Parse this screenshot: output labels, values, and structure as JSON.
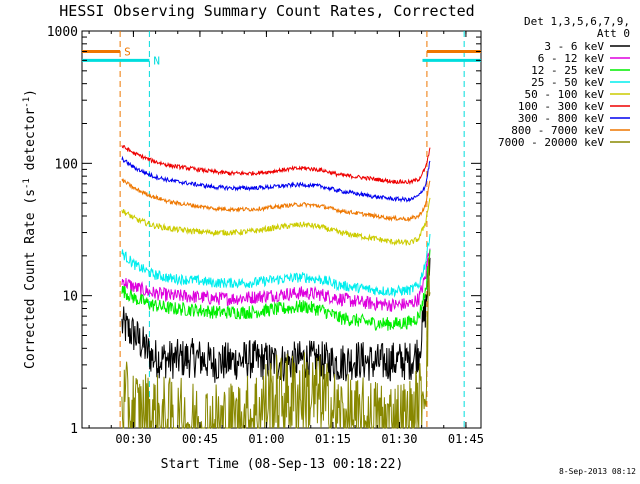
{
  "chart_data": {
    "type": "line",
    "title": "HESSI Observing Summary Count Rates, Corrected",
    "xlabel": "Start Time (08-Sep-13 00:18:22)",
    "ylabel_main": "Corrected Count Rate (s",
    "ylabel_sup1": "-1",
    "ylabel_mid": " detector",
    "ylabel_sup2": "-1",
    "ylabel_end": ")",
    "x_start": "00:18:22",
    "xlim_minutes_after_start": [
      0,
      90
    ],
    "x_ticks": [
      {
        "label": "00:30",
        "minutes": 11.6
      },
      {
        "label": "00:45",
        "minutes": 26.6
      },
      {
        "label": "01:00",
        "minutes": 41.6
      },
      {
        "label": "01:15",
        "minutes": 56.6
      },
      {
        "label": "01:30",
        "minutes": 71.6
      },
      {
        "label": "01:45",
        "minutes": 86.6
      }
    ],
    "y_scale": "log",
    "ylim": [
      1,
      1000
    ],
    "y_ticks": [
      {
        "label": "1",
        "value": 1
      },
      {
        "label": "10",
        "value": 10
      },
      {
        "label": "100",
        "value": 100
      },
      {
        "label": "1000",
        "value": 1000
      }
    ],
    "legend_header": [
      "Det 1,3,5,6,7,9,",
      "Att 0"
    ],
    "legend_placement": "right",
    "series": [
      {
        "name": "3 - 6 keV",
        "color": "#000000",
        "x": [
          9,
          12,
          16,
          20,
          26,
          30,
          34,
          38,
          42,
          46,
          50,
          54,
          58,
          62,
          66,
          70,
          74,
          76,
          77.5,
          78.5
        ],
        "y": [
          6,
          5,
          3.4,
          3.3,
          3.4,
          3.1,
          3.2,
          3.3,
          3.2,
          3.1,
          3.3,
          3.2,
          3.1,
          3.3,
          3.1,
          3.2,
          3.2,
          3.8,
          8,
          18
        ]
      },
      {
        "name": "6 - 12 keV",
        "color": "#dd00dd",
        "x": [
          9,
          12,
          16,
          20,
          26,
          30,
          34,
          38,
          42,
          46,
          50,
          54,
          58,
          62,
          66,
          70,
          74,
          76,
          77.5,
          78.5
        ],
        "y": [
          13,
          11.5,
          10.5,
          10,
          9.8,
          9.5,
          9.5,
          9.7,
          10,
          10.3,
          10.5,
          10.2,
          9.5,
          9.0,
          8.7,
          8.5,
          8.6,
          9.5,
          14,
          25
        ]
      },
      {
        "name": "12 - 25 keV",
        "color": "#00ee00",
        "x": [
          9,
          12,
          16,
          20,
          26,
          30,
          34,
          38,
          42,
          46,
          50,
          54,
          58,
          62,
          66,
          70,
          74,
          76,
          77.5,
          78.5
        ],
        "y": [
          11,
          9.5,
          8.5,
          8,
          7.8,
          7.5,
          7.5,
          7.5,
          7.8,
          8.0,
          8.3,
          7.8,
          6.8,
          6.5,
          6.2,
          6.1,
          6.3,
          7,
          11,
          22
        ]
      },
      {
        "name": "25 - 50 keV",
        "color": "#00eeee",
        "x": [
          9,
          12,
          16,
          20,
          26,
          30,
          34,
          38,
          42,
          46,
          50,
          54,
          58,
          62,
          66,
          70,
          74,
          76,
          77.5,
          78.5
        ],
        "y": [
          21,
          17,
          14.5,
          13.5,
          13,
          12.5,
          12.5,
          12.5,
          13,
          13.5,
          13.8,
          13.2,
          12,
          11.5,
          11,
          10.8,
          11,
          12,
          18,
          30
        ]
      },
      {
        "name": "50 - 100 keV",
        "color": "#cccc00",
        "x": [
          9,
          12,
          16,
          20,
          26,
          30,
          34,
          38,
          42,
          46,
          50,
          54,
          58,
          62,
          66,
          70,
          74,
          76,
          77.5,
          78.5
        ],
        "y": [
          44,
          38,
          34,
          32,
          30.5,
          30,
          30,
          30.5,
          32,
          33.5,
          34.5,
          33,
          30,
          28.5,
          27,
          25.5,
          25,
          27,
          36,
          55
        ]
      },
      {
        "name": "100 - 300 keV",
        "color": "#ee0000",
        "x": [
          9,
          12,
          16,
          20,
          26,
          30,
          34,
          38,
          42,
          46,
          50,
          54,
          58,
          62,
          66,
          70,
          74,
          76,
          77.5,
          78.5
        ],
        "y": [
          135,
          118,
          104,
          96,
          90,
          86,
          84,
          84,
          86,
          90,
          92,
          89,
          82,
          79,
          76,
          73,
          72,
          76,
          92,
          128
        ]
      },
      {
        "name": "300 - 800 keV",
        "color": "#0000ee",
        "x": [
          9,
          12,
          16,
          20,
          26,
          30,
          34,
          38,
          42,
          46,
          50,
          54,
          58,
          62,
          66,
          70,
          74,
          76,
          77.5,
          78.5
        ],
        "y": [
          108,
          92,
          80,
          74,
          69,
          66,
          65,
          65,
          66,
          68,
          69,
          67,
          62,
          59,
          56,
          54,
          53,
          57,
          68,
          105
        ]
      },
      {
        "name": "800 - 7000 keV",
        "color": "#ee7700",
        "x": [
          9,
          12,
          16,
          20,
          26,
          30,
          34,
          38,
          42,
          46,
          50,
          54,
          58,
          62,
          66,
          70,
          74,
          76,
          77.5,
          78.5
        ],
        "y": [
          75,
          64,
          56,
          51,
          47.5,
          45.5,
          45,
          45,
          46,
          48,
          49,
          47.5,
          44,
          42,
          40,
          38.5,
          38,
          40,
          48,
          75
        ]
      },
      {
        "name": "7000 - 20000 keV",
        "color": "#888800",
        "x": [
          9,
          12,
          16,
          20,
          26,
          30,
          34,
          38,
          42,
          46,
          50,
          54,
          58,
          62,
          66,
          70,
          74,
          76,
          77.5,
          78.5
        ],
        "y": [
          1.5,
          1.3,
          1.2,
          1.1,
          1.05,
          1.05,
          1.05,
          1.2,
          1.6,
          1.7,
          1.8,
          1.6,
          1.2,
          1.1,
          1.1,
          1.1,
          1.1,
          1.4,
          2.5,
          16
        ]
      }
    ],
    "markers": [
      {
        "label": "S",
        "kind": "saa",
        "color": "#ee7700",
        "x_start": 0,
        "x_end": 8.6,
        "band_y": 700
      },
      {
        "label": "",
        "kind": "saa",
        "color": "#ee7700",
        "x_start": 77.8,
        "x_end": 90,
        "band_y": 700
      },
      {
        "label": "N",
        "kind": "night",
        "color": "#00dddd",
        "x_start": 0,
        "x_end": 15.2,
        "band_y": 600
      },
      {
        "label": "",
        "kind": "night",
        "color": "#00dddd",
        "x_start": 76.8,
        "x_end": 90,
        "band_y": 600
      }
    ],
    "vertical_lines": [
      {
        "x": 8.6,
        "color": "#ee7700"
      },
      {
        "x": 15.2,
        "color": "#00dddd"
      },
      {
        "x": 77.8,
        "color": "#ee7700"
      },
      {
        "x": 86.2,
        "color": "#00dddd"
      }
    ],
    "footer_timestamp": "8-Sep-2013 08:12"
  }
}
